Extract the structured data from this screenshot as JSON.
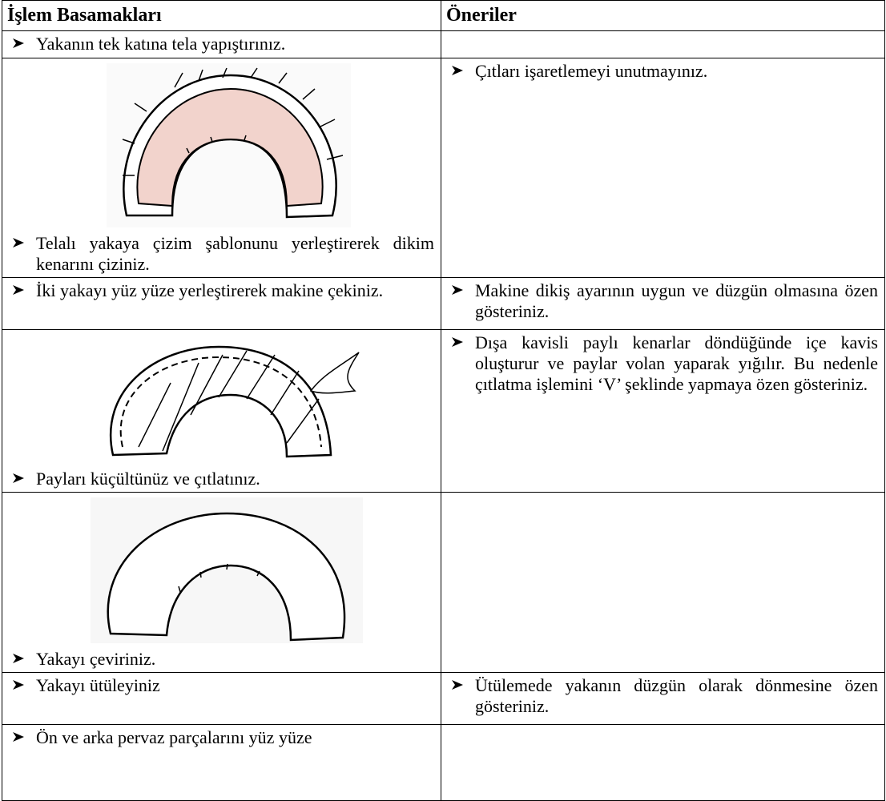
{
  "header": {
    "cols": [
      "İşlem Basamakları",
      "Öneriler"
    ]
  },
  "rows": [
    {
      "step": "Yakanın tek katına tela yapıştırınız."
    },
    {
      "step": "Telalı yakaya çizim şablonunu yerleştirerek dikim kenarını çiziniz.",
      "tip": "Çıtları işaretlemeyi unutmayınız."
    },
    {
      "step": "İki yakayı yüz yüze yerleştirerek makine çekiniz.",
      "tip": "Makine dikiş ayarının uygun ve düzgün olmasına özen gösteriniz."
    },
    {
      "step": "Payları küçültünüz ve çıtlatınız.",
      "tip": "Dışa kavisli paylı kenarlar döndüğünde içe kavis oluşturur ve paylar volan yaparak yığılır. Bu nedenle çıtlatma işlemini ‘V’ şeklinde yapmaya özen gösteriniz."
    },
    {
      "step": "Yakayı çeviriniz."
    },
    {
      "step": "Yakayı ütüleyiniz",
      "tip": "Ütülemede yakanın düzgün olarak dönmesine özen gösteriniz."
    },
    {
      "step": "Ön ve arka pervaz parçalarını yüz yüze"
    }
  ]
}
